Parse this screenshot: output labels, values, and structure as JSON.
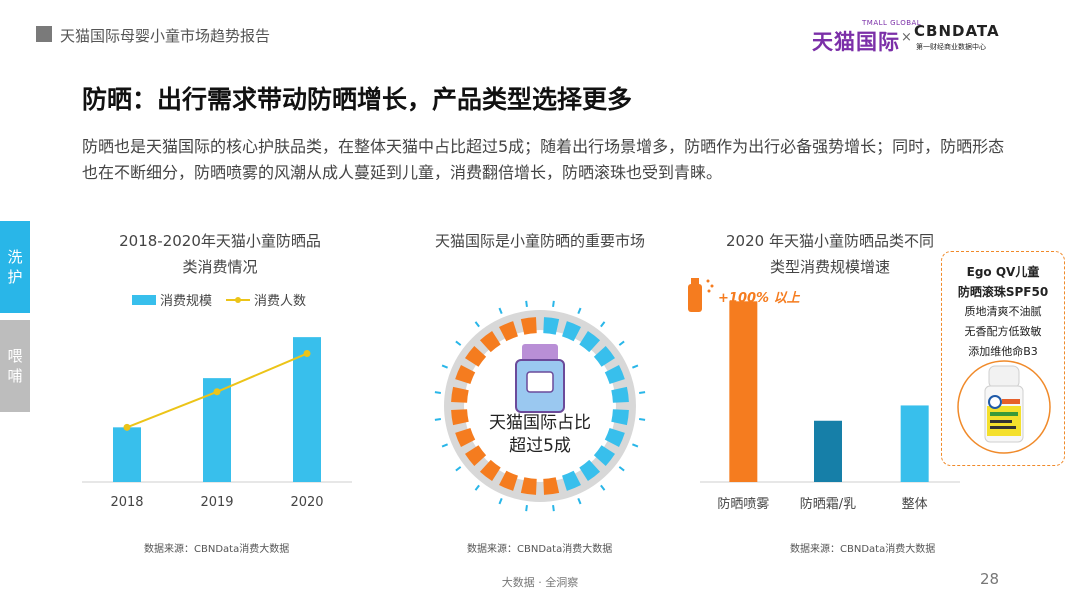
{
  "header": {
    "title": "天猫国际母婴小童市场趋势报告"
  },
  "brand": {
    "tmall": "天猫国际",
    "tmall_global": "TMALL GLOBAL",
    "x": "×",
    "cbn": "CBNDATA",
    "cbn_sub": "第一财经商业数据中心"
  },
  "page_title": "防晒：出行需求带动防晒增长，产品类型选择更多",
  "body_text": "防晒也是天猫国际的核心护肤品类，在整体天猫中占比超过5成；随着出行场景增多，防晒作为出行必备强势增长；同时，防晒形态也在不断细分，防晒喷雾的风潮从成人蔓延到儿童，消费翻倍增长，防晒滚珠也受到青睐。",
  "side_tabs": [
    {
      "chars": [
        "洗",
        "护"
      ]
    },
    {
      "chars": [
        "喂",
        "哺"
      ]
    }
  ],
  "chart1": {
    "title_line1": "2018-2020年天猫小童防晒品",
    "title_line2": "类消费情况",
    "source": "数据来源：CBNData消费大数据"
  },
  "chart2": {
    "title": "天猫国际是小童防晒的重要市场",
    "center_line1": "天猫国际占比",
    "center_line2": "超过5成",
    "source": "数据来源：CBNData消费大数据"
  },
  "chart3": {
    "title_line1": "2020 年天猫小童防晒品类不同",
    "title_line2": "类型消费规模增速",
    "annotation": "+100% 以上",
    "source": "数据来源：CBNData消费大数据"
  },
  "product_card": {
    "line1": "Ego QV儿童",
    "line2": "防晒滚珠SPF50",
    "line3": "质地清爽不油腻",
    "line4": "无香配方低致敏",
    "line5": "添加维他命B3"
  },
  "footer": {
    "center": "大数据 · 全洞察",
    "page": "28"
  },
  "colors": {
    "accent_blue": "#29b6e8",
    "bar_blue": "#38bfec",
    "line_yellow": "#ecc418",
    "orange": "#f57c1f",
    "teal": "#167fa8",
    "ring_gray": "#d8d8d8"
  },
  "chart_data": [
    {
      "type": "bar",
      "categories": [
        "2018",
        "2019",
        "2020"
      ],
      "series": [
        {
          "name": "消费规模",
          "kind": "bar",
          "values": [
            1.0,
            1.9,
            2.65
          ]
        },
        {
          "name": "消费人数",
          "kind": "line",
          "values": [
            1.0,
            1.65,
            2.35
          ]
        }
      ],
      "ylim": [
        0,
        3
      ],
      "grid": false,
      "legend": "top"
    },
    {
      "type": "pie",
      "segments_total": 24,
      "segments_highlighted": 13,
      "highlight_color": "#f57c1f",
      "base_color": "#38bfec",
      "values": [
        0.54,
        0.46
      ],
      "center_text": [
        "天猫国际占比",
        "超过5成"
      ]
    },
    {
      "type": "bar",
      "categories": [
        "防晒喷雾",
        "防晒霜/乳",
        "整体"
      ],
      "values": [
        2.95,
        1.0,
        1.25
      ],
      "colors": [
        "#f57c1f",
        "#167fa8",
        "#38bfec"
      ],
      "ylim": [
        0,
        3.2
      ],
      "annotation": "+100% 以上",
      "grid": false
    }
  ]
}
